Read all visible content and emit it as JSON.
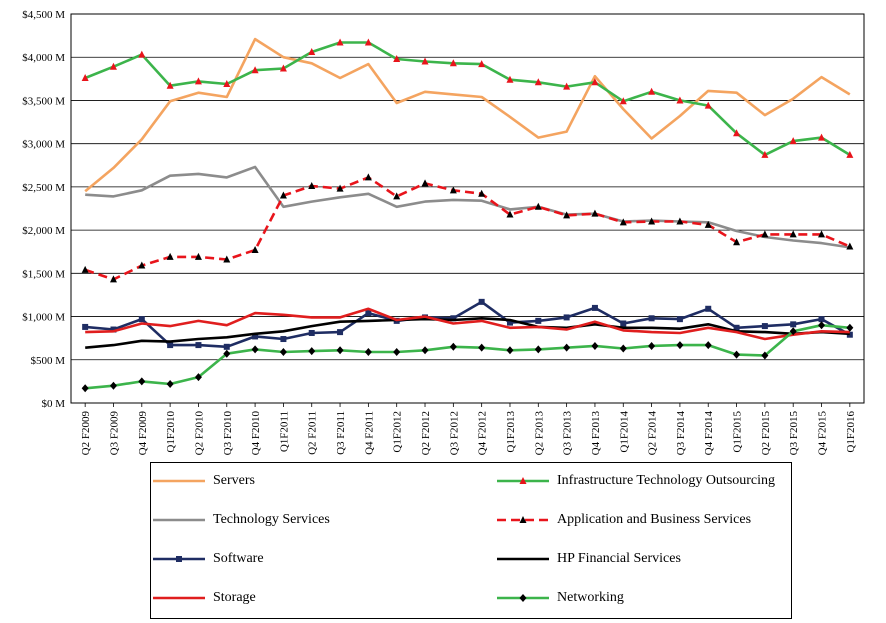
{
  "chart_data": {
    "type": "line",
    "title": "",
    "xlabel": "",
    "ylabel": "",
    "ylim": [
      0,
      4500
    ],
    "yticks": [
      "$0 M",
      "$500 M",
      "$1,000 M",
      "$1,500 M",
      "$2,000 M",
      "$2,500 M",
      "$3,000 M",
      "$3,500 M",
      "$4,000 M",
      "$4,500 M"
    ],
    "grid": "horizontal",
    "legend_position": "bottom",
    "categories": [
      "Q2 F2009",
      "Q3 F2009",
      "Q4 F2009",
      "Q1F2010",
      "Q2 F2010",
      "Q3 F2010",
      "Q4 F2010",
      "Q1F2011",
      "Q2 F2011",
      "Q3 F2011",
      "Q4 F2011",
      "Q1F2012",
      "Q2 F2012",
      "Q3 F2012",
      "Q4 F2012",
      "Q1F2013",
      "Q2 F2013",
      "Q3 F2013",
      "Q4 F2013",
      "Q1F2014",
      "Q2 F2014",
      "Q3 F2014",
      "Q4 F2014",
      "Q1F2015",
      "Q2 F2015",
      "Q3 F2015",
      "Q4 F2015",
      "Q1F2016"
    ],
    "series": [
      {
        "name": "Servers",
        "color": "#F4A460",
        "dash": "solid",
        "marker": "none",
        "values": [
          2450,
          2720,
          3050,
          3490,
          3590,
          3540,
          4210,
          4000,
          3930,
          3760,
          3920,
          3470,
          3600,
          3570,
          3540,
          3310,
          3070,
          3140,
          3780,
          3400,
          3060,
          3320,
          3610,
          3590,
          3330,
          3520,
          3770,
          3570
        ]
      },
      {
        "name": "Infrastructure Technology Outsourcing",
        "color": "#3CB44B",
        "dash": "solid",
        "marker": "triangle",
        "values": [
          3760,
          3890,
          4030,
          3670,
          3720,
          3690,
          3850,
          3870,
          4060,
          4170,
          4170,
          3980,
          3950,
          3930,
          3920,
          3740,
          3710,
          3660,
          3710,
          3490,
          3600,
          3500,
          3440,
          3120,
          2870,
          3030,
          3070,
          2870
        ]
      },
      {
        "name": "Technology Services",
        "color": "#8C8C8C",
        "dash": "solid",
        "marker": "none",
        "values": [
          2410,
          2390,
          2460,
          2630,
          2650,
          2610,
          2730,
          2270,
          2330,
          2380,
          2420,
          2270,
          2330,
          2350,
          2340,
          2240,
          2270,
          2180,
          2190,
          2100,
          2110,
          2100,
          2090,
          1990,
          1920,
          1880,
          1850,
          1800
        ]
      },
      {
        "name": "Application and Business Services",
        "color": "#E8141B",
        "dash": "dashed",
        "marker": "triangle-black",
        "values": [
          1540,
          1430,
          1590,
          1690,
          1690,
          1660,
          1770,
          2400,
          2510,
          2480,
          2610,
          2390,
          2540,
          2460,
          2420,
          2180,
          2270,
          2170,
          2190,
          2090,
          2100,
          2100,
          2060,
          1860,
          1950,
          1950,
          1950,
          1810
        ]
      },
      {
        "name": "Software",
        "color": "#1F2D63",
        "dash": "solid",
        "marker": "square",
        "values": [
          880,
          850,
          970,
          670,
          670,
          650,
          770,
          740,
          810,
          820,
          1040,
          950,
          990,
          980,
          1170,
          930,
          950,
          990,
          1100,
          920,
          980,
          970,
          1090,
          870,
          890,
          910,
          970,
          790
        ]
      },
      {
        "name": "HP Financial Services",
        "color": "#000000",
        "dash": "solid",
        "marker": "none",
        "values": [
          640,
          670,
          720,
          710,
          740,
          760,
          800,
          830,
          890,
          940,
          950,
          960,
          970,
          960,
          980,
          960,
          880,
          870,
          910,
          870,
          870,
          860,
          910,
          830,
          820,
          800,
          820,
          800
        ]
      },
      {
        "name": "Storage",
        "color": "#E01E1E",
        "dash": "solid",
        "marker": "none",
        "values": [
          820,
          830,
          920,
          890,
          950,
          900,
          1040,
          1020,
          990,
          990,
          1090,
          960,
          1000,
          920,
          950,
          870,
          880,
          850,
          940,
          840,
          820,
          810,
          870,
          820,
          740,
          790,
          830,
          820
        ]
      },
      {
        "name": "Networking",
        "color": "#3CB44B",
        "dash": "solid",
        "marker": "diamond",
        "values": [
          170,
          200,
          250,
          220,
          300,
          570,
          620,
          590,
          600,
          610,
          590,
          590,
          610,
          650,
          640,
          610,
          620,
          640,
          660,
          630,
          660,
          670,
          670,
          560,
          550,
          830,
          900,
          870
        ]
      }
    ]
  }
}
